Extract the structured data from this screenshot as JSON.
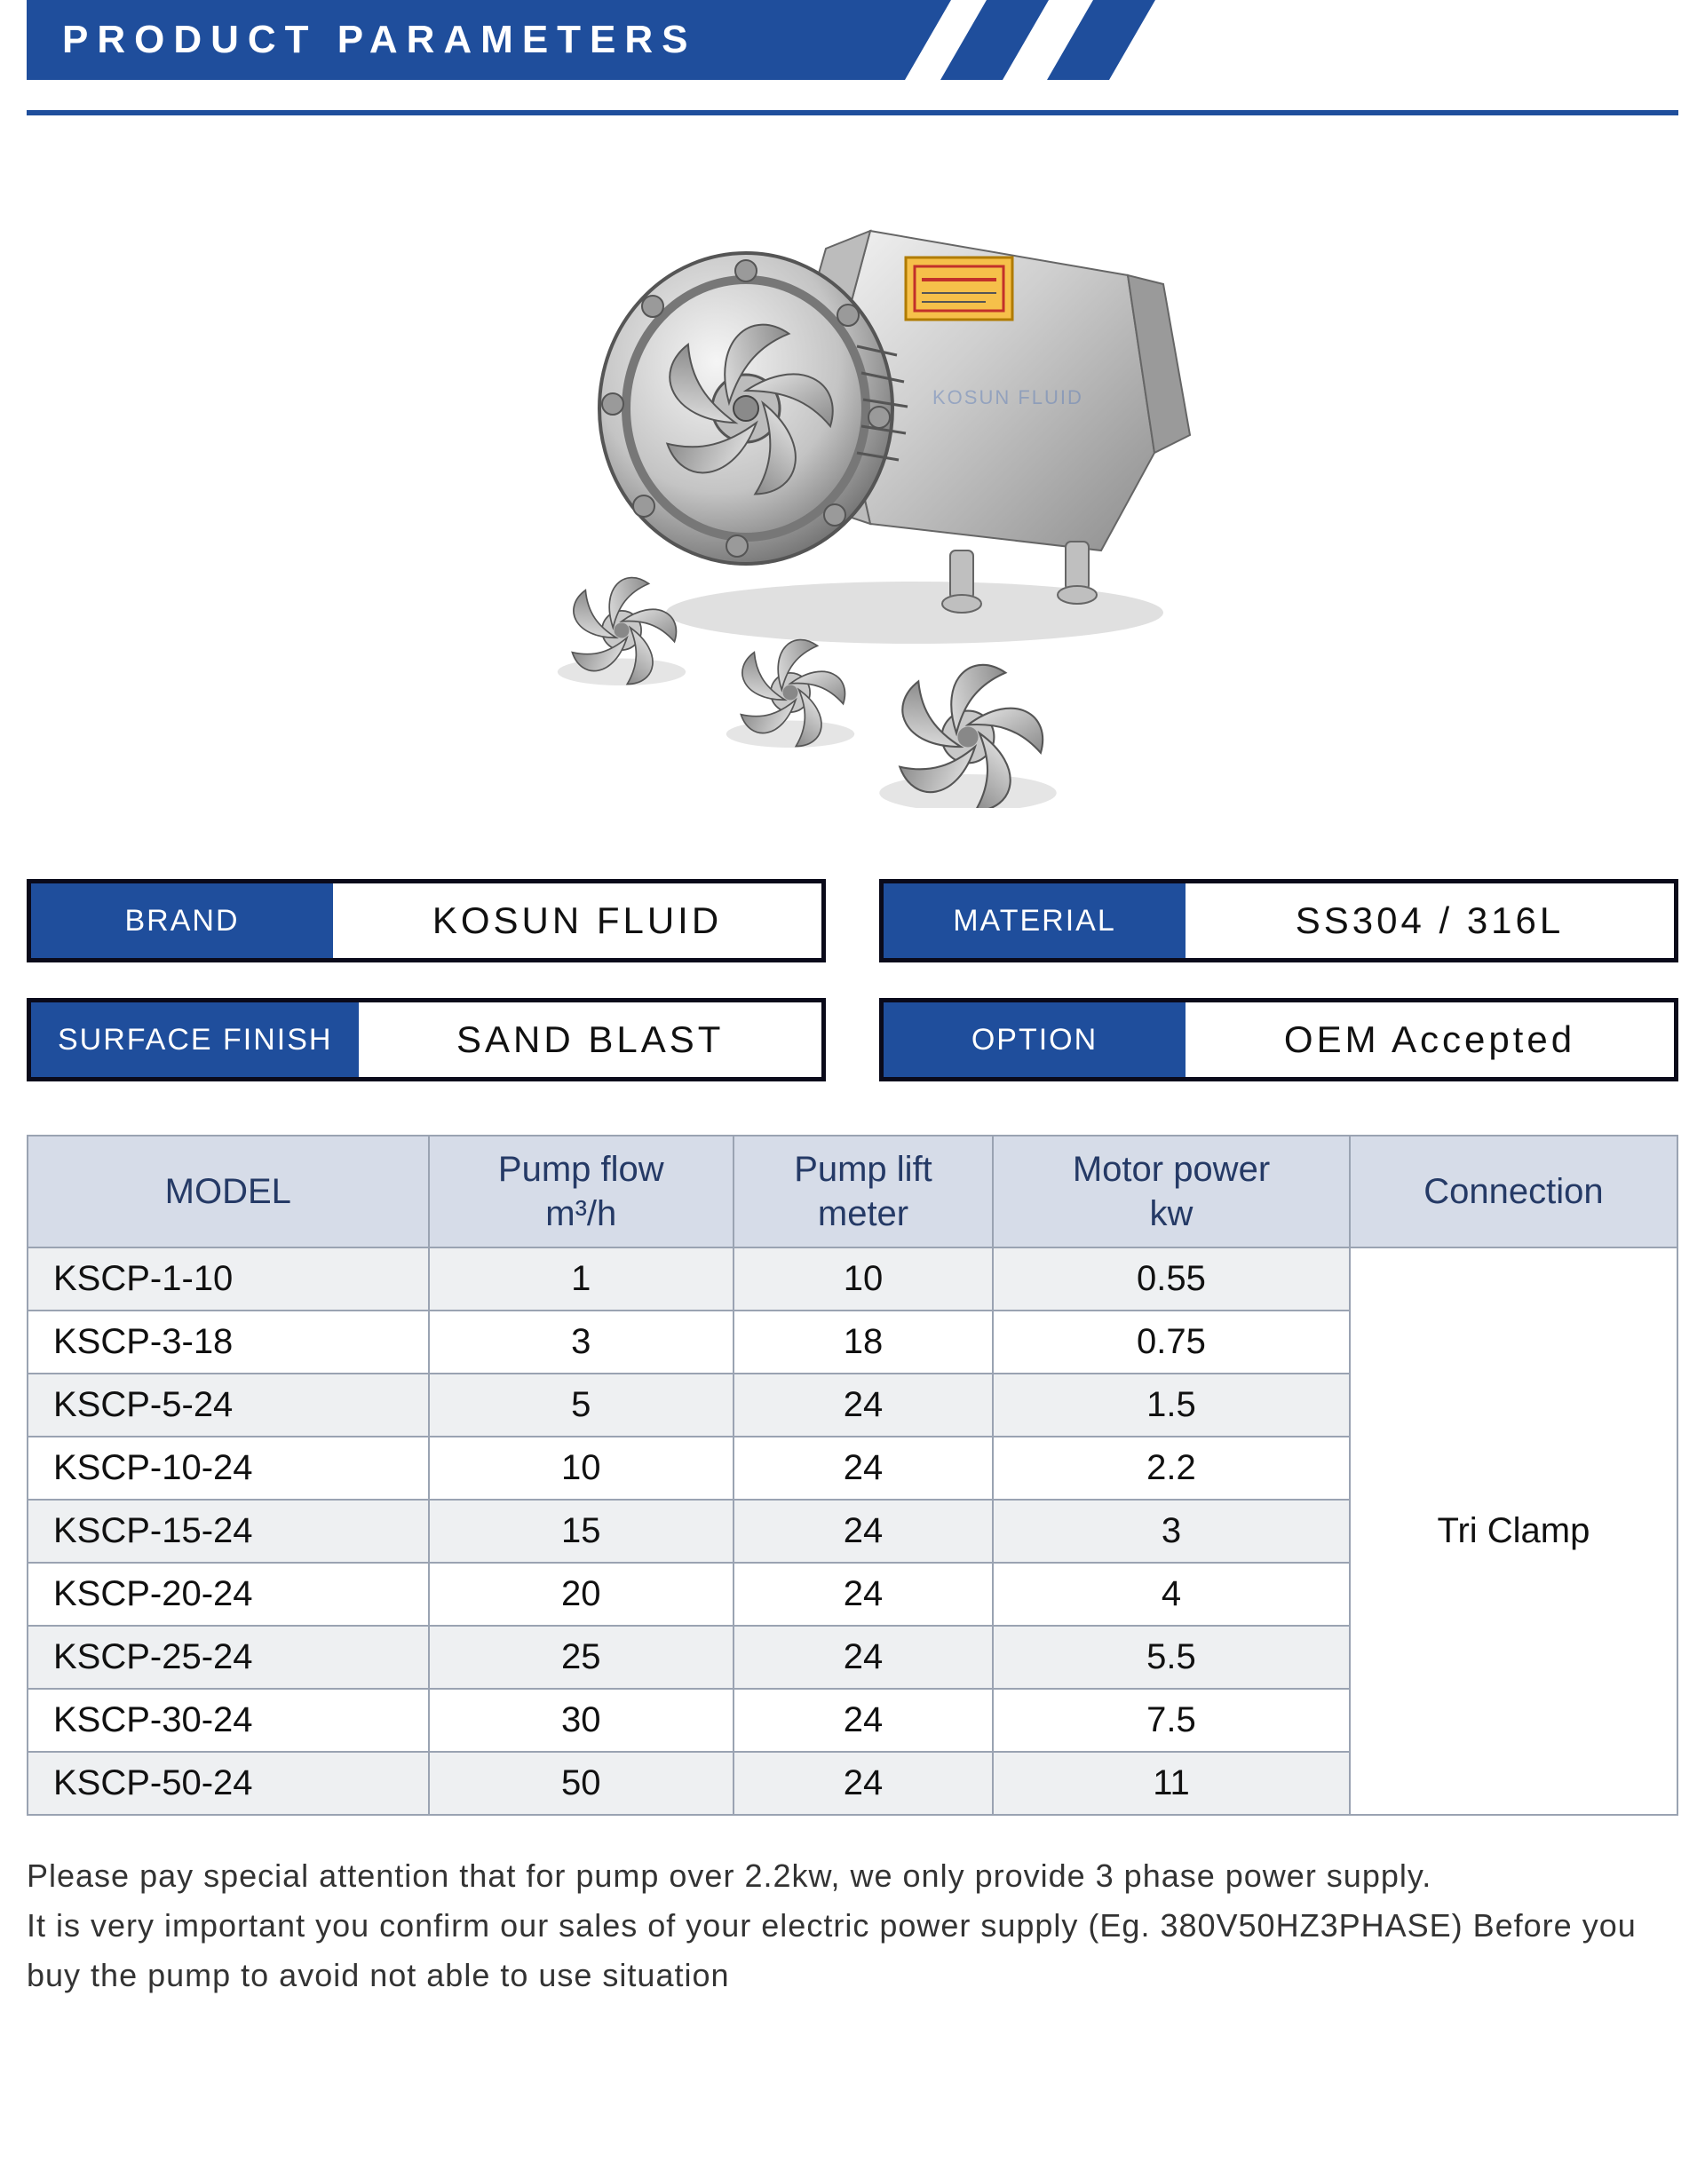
{
  "header": {
    "title": "PRODUCT PARAMETERS"
  },
  "colors": {
    "brand_blue": "#1f4e9c",
    "box_border": "#0a0a1a",
    "table_header_bg": "#d6dce8",
    "table_header_text": "#253a66",
    "table_border": "#9aa3b2",
    "row_alt_bg": "#eef0f2",
    "steel_light": "#e3e3e3",
    "steel_mid": "#b9b9b9",
    "steel_dark": "#7d7d7d",
    "label_orange": "#f6c04a"
  },
  "product_image": {
    "description": "Stainless steel sanitary centrifugal pump with open impeller and three loose impellers in front",
    "watermark": "KOSUN FLUID"
  },
  "specs": [
    {
      "label": "BRAND",
      "value": "KOSUN FLUID"
    },
    {
      "label": "MATERIAL",
      "value": "SS304 / 316L"
    },
    {
      "label": "SURFACE FINISH",
      "value": "SAND BLAST"
    },
    {
      "label": "OPTION",
      "value": "OEM Accepted"
    }
  ],
  "table": {
    "columns": [
      "MODEL",
      "Pump flow\nm³/h",
      "Pump lift\nmeter",
      "Motor power\nkw",
      "Connection"
    ],
    "rows": [
      {
        "model": "KSCP-1-10",
        "flow": "1",
        "lift": "10",
        "power": "0.55"
      },
      {
        "model": "KSCP-3-18",
        "flow": "3",
        "lift": "18",
        "power": "0.75"
      },
      {
        "model": "KSCP-5-24",
        "flow": "5",
        "lift": "24",
        "power": "1.5"
      },
      {
        "model": "KSCP-10-24",
        "flow": "10",
        "lift": "24",
        "power": "2.2"
      },
      {
        "model": "KSCP-15-24",
        "flow": "15",
        "lift": "24",
        "power": "3"
      },
      {
        "model": "KSCP-20-24",
        "flow": "20",
        "lift": "24",
        "power": "4"
      },
      {
        "model": "KSCP-25-24",
        "flow": "25",
        "lift": "24",
        "power": "5.5"
      },
      {
        "model": "KSCP-30-24",
        "flow": "30",
        "lift": "24",
        "power": "7.5"
      },
      {
        "model": "KSCP-50-24",
        "flow": "50",
        "lift": "24",
        "power": "11"
      }
    ],
    "connection_value": "Tri Clamp"
  },
  "note_lines": [
    "Please pay special attention that for pump over 2.2kw, we only provide 3 phase power supply.",
    "It is very important you confirm our sales of your electric power supply (Eg. 380V50HZ3PHASE) Before you",
    "buy the pump to avoid not able to use situation"
  ]
}
